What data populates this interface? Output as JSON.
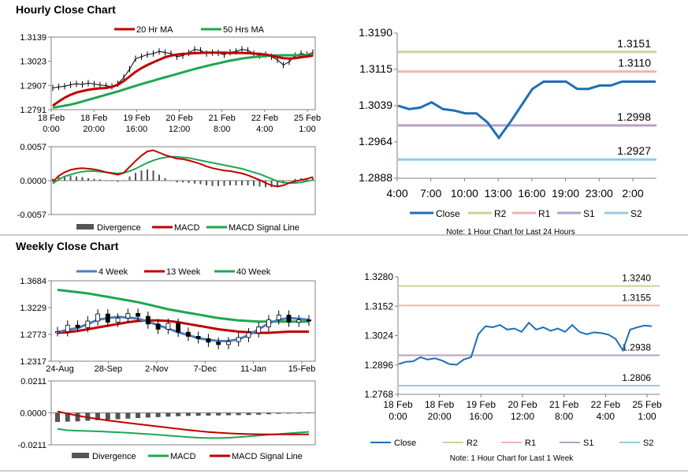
{
  "sections": {
    "hourly_title": "Hourly Close Chart",
    "weekly_title": "Weekly Close Chart"
  },
  "chart_data": [
    {
      "id": "hourly_price",
      "type": "line",
      "title": "Hourly Close Chart",
      "legend": [
        "20 Hr MA",
        "50 Hrs MA"
      ],
      "colors": {
        "ma20": "#c00000",
        "ma50": "#1fa651",
        "price": "#000000"
      },
      "yticks": [
        "1.3139",
        "1.3023",
        "1.2907",
        "1.2791"
      ],
      "ylim": [
        1.2791,
        1.3139
      ],
      "xticks": [
        [
          "18 Feb",
          "0:00"
        ],
        [
          "18 Feb",
          "20:00"
        ],
        [
          "19 Feb",
          "16:00"
        ],
        [
          "20 Feb",
          "12:00"
        ],
        [
          "21 Feb",
          "8:00"
        ],
        [
          "22 Feb",
          "4:00"
        ],
        [
          "25 Feb",
          "1:00"
        ]
      ],
      "price": [
        1.2895,
        1.29,
        1.2903,
        1.291,
        1.2915,
        1.2912,
        1.2918,
        1.2914,
        1.2909,
        1.2906,
        1.2902,
        1.2915,
        1.2945,
        1.2985,
        1.3035,
        1.3045,
        1.3055,
        1.306,
        1.307,
        1.3065,
        1.306,
        1.3045,
        1.305,
        1.3063,
        1.308,
        1.3075,
        1.306,
        1.3065,
        1.3063,
        1.3055,
        1.3066,
        1.307,
        1.308,
        1.3075,
        1.306,
        1.305,
        1.3055,
        1.3045,
        1.303,
        1.3005,
        1.302,
        1.305,
        1.306,
        1.3055,
        1.3065
      ],
      "ma20": [
        1.281,
        1.283,
        1.2848,
        1.2862,
        1.2873,
        1.288,
        1.2886,
        1.289,
        1.2893,
        1.2895,
        1.29,
        1.291,
        1.2928,
        1.295,
        1.2972,
        1.299,
        1.3005,
        1.3018,
        1.303,
        1.3042,
        1.305,
        1.3055,
        1.3058,
        1.306,
        1.3062,
        1.3063,
        1.3064,
        1.3064,
        1.3064,
        1.3064,
        1.3063,
        1.3063,
        1.3063,
        1.3062,
        1.306,
        1.3058,
        1.3055,
        1.305,
        1.3043,
        1.3038,
        1.3036,
        1.3038,
        1.3042,
        1.3046,
        1.305
      ],
      "ma50": [
        1.28,
        1.2805,
        1.281,
        1.2815,
        1.2822,
        1.283,
        1.2838,
        1.2846,
        1.2854,
        1.2862,
        1.287,
        1.2878,
        1.2887,
        1.2896,
        1.2905,
        1.2914,
        1.2922,
        1.293,
        1.2938,
        1.2946,
        1.2954,
        1.2962,
        1.297,
        1.2978,
        1.2986,
        1.2993,
        1.3,
        1.3007,
        1.3013,
        1.302,
        1.3026,
        1.3031,
        1.3036,
        1.304,
        1.3043,
        1.3046,
        1.3048,
        1.305,
        1.3051,
        1.3052,
        1.3052,
        1.3052,
        1.3052,
        1.3052,
        1.3052
      ]
    },
    {
      "id": "hourly_macd",
      "type": "line",
      "legend": [
        "Divergence",
        "MACD",
        "MACD Signal Line"
      ],
      "colors": {
        "divergence": "#555555",
        "macd": "#c00000",
        "signal": "#1fa651"
      },
      "yticks": [
        "0.0057",
        "0.0000",
        "-0.0057"
      ],
      "ylim": [
        -0.0057,
        0.0057
      ],
      "macd": [
        -0.0002,
        0.0008,
        0.0014,
        0.0018,
        0.002,
        0.0021,
        0.002,
        0.0019,
        0.0017,
        0.0014,
        0.0012,
        0.001,
        0.0013,
        0.0023,
        0.0033,
        0.0042,
        0.0049,
        0.0051,
        0.0047,
        0.0043,
        0.004,
        0.0037,
        0.0036,
        0.0034,
        0.0031,
        0.0028,
        0.0024,
        0.0021,
        0.0019,
        0.0017,
        0.0016,
        0.0014,
        0.0012,
        0.0009,
        0.0005,
        0.0001,
        -0.0004,
        -0.0008,
        -0.001,
        -0.0008,
        -0.0004,
        -0.0001,
        0.0001,
        0.0003,
        0.0006
      ],
      "signal": [
        -0.0005,
        0.0002,
        0.0007,
        0.001,
        0.0013,
        0.0015,
        0.0016,
        0.0016,
        0.0015,
        0.0014,
        0.0013,
        0.0012,
        0.0013,
        0.0016,
        0.002,
        0.0025,
        0.003,
        0.0034,
        0.0037,
        0.0039,
        0.004,
        0.004,
        0.0039,
        0.0038,
        0.0036,
        0.0034,
        0.0032,
        0.003,
        0.0028,
        0.0026,
        0.0024,
        0.0022,
        0.002,
        0.0017,
        0.0014,
        0.0011,
        0.0007,
        0.0003,
        -0.0001,
        -0.0003,
        -0.0004,
        -0.0004,
        -0.0003,
        -0.0001,
        0.0001
      ]
    },
    {
      "id": "hourly_24h",
      "type": "line",
      "note": "Note: 1 Hour Chart for Last 24 Hours",
      "yticks": [
        "1.3190",
        "1.3115",
        "1.3039",
        "1.2964",
        "1.2888"
      ],
      "ylim": [
        1.2888,
        1.319
      ],
      "xticks": [
        "4:00",
        "7:00",
        "10:00",
        "13:00",
        "16:00",
        "19:00",
        "23:00",
        "2:00"
      ],
      "levels": [
        {
          "name": "R2",
          "value": 1.3151,
          "label": "1.3151",
          "color": "#c3d69b"
        },
        {
          "name": "R1",
          "value": 1.311,
          "label": "1.3110",
          "color": "#f2b3b0"
        },
        {
          "name": "S1",
          "value": 1.2998,
          "label": "1.2998",
          "color": "#b3a2c7"
        },
        {
          "name": "S2",
          "value": 1.2927,
          "label": "1.2927",
          "color": "#93cddd"
        }
      ],
      "legend": [
        "Close",
        "R2",
        "R1",
        "S1",
        "S2"
      ],
      "close_color": "#1f6eb4",
      "close": [
        1.3039,
        1.3032,
        1.3035,
        1.3046,
        1.3032,
        1.3029,
        1.3023,
        1.3023,
        1.3004,
        1.2972,
        1.3004,
        1.3039,
        1.3074,
        1.3089,
        1.3089,
        1.3089,
        1.3074,
        1.3074,
        1.3081,
        1.3081,
        1.3089,
        1.3089,
        1.3089,
        1.3089
      ]
    },
    {
      "id": "weekly_price",
      "type": "line",
      "title": "Weekly Close Chart",
      "legend": [
        "4 Week",
        "13 Week",
        "40 Week"
      ],
      "colors": {
        "w4": "#4a7fc1",
        "w13": "#c00000",
        "w40": "#1fa651",
        "price": "#000000"
      },
      "yticks": [
        "1.3684",
        "1.3229",
        "1.2773",
        "1.2317"
      ],
      "ylim": [
        1.2317,
        1.3684
      ],
      "xticks": [
        "24-Aug",
        "28-Sep",
        "2-Nov",
        "7-Dec",
        "11-Jan",
        "15-Feb"
      ],
      "price": [
        1.282,
        1.293,
        1.289,
        1.3,
        1.312,
        1.298,
        1.305,
        1.313,
        1.308,
        1.295,
        1.286,
        1.296,
        1.281,
        1.274,
        1.27,
        1.264,
        1.26,
        1.265,
        1.272,
        1.28,
        1.29,
        1.302,
        1.31,
        1.298,
        1.302,
        1.3
      ],
      "w4": [
        1.281,
        1.285,
        1.288,
        1.295,
        1.302,
        1.305,
        1.307,
        1.306,
        1.304,
        1.299,
        1.293,
        1.287,
        1.281,
        1.276,
        1.271,
        1.268,
        1.266,
        1.266,
        1.269,
        1.276,
        1.286,
        1.296,
        1.302,
        1.305,
        1.304,
        1.302
      ],
      "w13": [
        1.28,
        1.281,
        1.283,
        1.286,
        1.289,
        1.292,
        1.295,
        1.298,
        1.3,
        1.301,
        1.301,
        1.3,
        1.298,
        1.295,
        1.292,
        1.289,
        1.286,
        1.284,
        1.282,
        1.281,
        1.28,
        1.28,
        1.281,
        1.282,
        1.282,
        1.282
      ],
      "w40": [
        1.353,
        1.351,
        1.349,
        1.347,
        1.344,
        1.341,
        1.338,
        1.335,
        1.332,
        1.328,
        1.324,
        1.32,
        1.317,
        1.314,
        1.311,
        1.308,
        1.305,
        1.303,
        1.301,
        1.3,
        1.299,
        1.299,
        1.299,
        1.299,
        1.299,
        1.299
      ]
    },
    {
      "id": "weekly_macd",
      "type": "bar",
      "legend": [
        "Divergence",
        "MACD",
        "MACD Signal Line"
      ],
      "colors": {
        "divergence": "#555555",
        "macd": "#1fa651",
        "signal": "#c00000"
      },
      "yticks": [
        "0.0211",
        "0.0000",
        "-0.0211"
      ],
      "ylim": [
        -0.0211,
        0.0211
      ],
      "divergence": [
        -0.006,
        -0.0058,
        -0.0056,
        -0.0052,
        -0.0048,
        -0.0045,
        -0.0042,
        -0.0038,
        -0.0034,
        -0.0031,
        -0.0028,
        -0.0025,
        -0.0022,
        -0.002,
        -0.0019,
        -0.0018,
        -0.0017,
        -0.0016,
        -0.0015,
        -0.0014,
        -0.0012,
        -0.0009,
        -0.0006,
        -0.0003,
        0.0,
        0.0003
      ],
      "macd": [
        -0.0105,
        -0.0115,
        -0.0118,
        -0.012,
        -0.0122,
        -0.0125,
        -0.0128,
        -0.0132,
        -0.0136,
        -0.014,
        -0.0145,
        -0.015,
        -0.0155,
        -0.016,
        -0.0164,
        -0.0166,
        -0.0166,
        -0.0164,
        -0.016,
        -0.0155,
        -0.015,
        -0.0145,
        -0.014,
        -0.0135,
        -0.013,
        -0.0125
      ],
      "signal": [
        0.001,
        -0.0005,
        -0.0018,
        -0.003,
        -0.004,
        -0.005,
        -0.0058,
        -0.0066,
        -0.0074,
        -0.0082,
        -0.009,
        -0.0098,
        -0.0106,
        -0.0113,
        -0.012,
        -0.0126,
        -0.0131,
        -0.0135,
        -0.0138,
        -0.014,
        -0.0141,
        -0.0142,
        -0.0142,
        -0.0142,
        -0.0142,
        -0.0142
      ]
    },
    {
      "id": "weekly_1w",
      "type": "line",
      "note": "Note: 1 Hour Chart for Last 1 Week",
      "yticks": [
        "1.3280",
        "1.3152",
        "1.3024",
        "1.2896",
        "1.2768"
      ],
      "ylim": [
        1.2768,
        1.328
      ],
      "xticks": [
        [
          "18 Feb",
          "0:00"
        ],
        [
          "18 Feb",
          "20:00"
        ],
        [
          "19 Feb",
          "16:00"
        ],
        [
          "20 Feb",
          "12:00"
        ],
        [
          "21 Feb",
          "8:00"
        ],
        [
          "22 Feb",
          "4:00"
        ],
        [
          "25 Feb",
          "1:00"
        ]
      ],
      "levels": [
        {
          "name": "R2",
          "value": 1.324,
          "label": "1.3240",
          "color": "#c3d69b"
        },
        {
          "name": "R1",
          "value": 1.3155,
          "label": "1.3155",
          "color": "#f2b3b0"
        },
        {
          "name": "S1",
          "value": 1.2938,
          "label": "1.2938",
          "color": "#b3a2c7"
        },
        {
          "name": "S2",
          "value": 1.2806,
          "label": "1.2806",
          "color": "#93cddd"
        }
      ],
      "legend": [
        "Close",
        "R2",
        "R1",
        "S1",
        "S2"
      ],
      "close_color": "#1f6eb4",
      "close": [
        1.29,
        1.291,
        1.2912,
        1.293,
        1.292,
        1.2925,
        1.2915,
        1.29,
        1.2897,
        1.292,
        1.293,
        1.303,
        1.3065,
        1.306,
        1.307,
        1.305,
        1.3055,
        1.304,
        1.308,
        1.305,
        1.306,
        1.3045,
        1.3055,
        1.304,
        1.307,
        1.304,
        1.303,
        1.3038,
        1.3035,
        1.3028,
        1.301,
        1.296,
        1.305,
        1.306,
        1.3068,
        1.3065
      ]
    }
  ]
}
